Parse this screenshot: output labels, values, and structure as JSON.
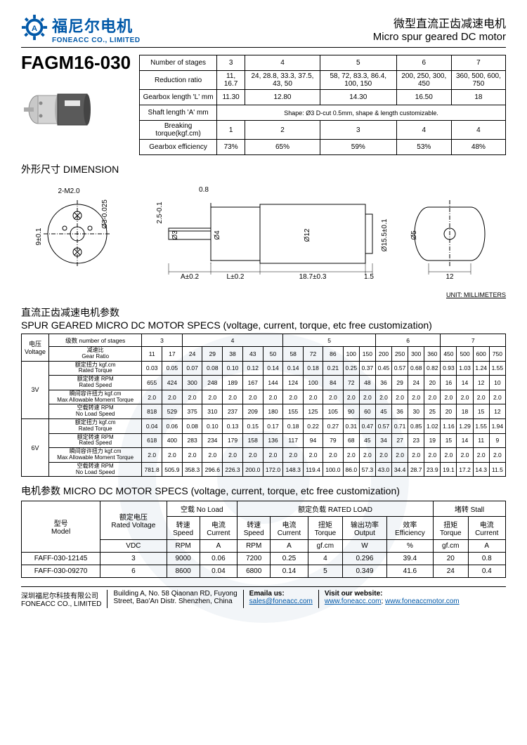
{
  "company": {
    "name_cn": "福尼尔电机",
    "name_en": "FONEACC CO., LIMITED",
    "logo_color": "#0058a8"
  },
  "header": {
    "title_cn": "微型直流正齿减速电机",
    "title_en": "Micro spur geared DC motor"
  },
  "model": "FAGM16-030",
  "stages_table": {
    "rows": [
      {
        "label": "Number of stages",
        "cells": [
          "3",
          "4",
          "5",
          "6",
          "7"
        ]
      },
      {
        "label": "Reduction ratio",
        "cells": [
          "11, 16.7",
          "24, 28.8, 33.3, 37.5, 43, 50",
          "58, 72, 83.3, 86.4, 100, 150",
          "200, 250, 300, 450",
          "360, 500, 600, 750"
        ]
      },
      {
        "label": "Gearbox length 'L' mm",
        "cells": [
          "11.30",
          "12.80",
          "14.30",
          "16.50",
          "18"
        ]
      },
      {
        "label": "Shaft length 'A' mm",
        "shaft_note": "Shape: Ø3 D-cut 0.5mm, shape & length customizable."
      },
      {
        "label": "Breaking torque(kgf.cm)",
        "cells": [
          "1",
          "2",
          "3",
          "4",
          "4"
        ]
      },
      {
        "label": "Gearbox efficiency",
        "cells": [
          "73%",
          "65%",
          "59%",
          "53%",
          "48%"
        ]
      }
    ]
  },
  "dimension": {
    "title_cn": "外形尺寸",
    "title_en": "DIMENSION",
    "unit_note": "UNIT: MILLIMETERS",
    "labels": {
      "holes": "2-M2.0",
      "h9": "9±0.1",
      "d3": "Ø3-0.025",
      "t08": "0.8",
      "t25": "2.5-0.1",
      "d4": "Ø4",
      "d3s": "Ø3",
      "d12": "Ø12",
      "d155": "Ø15.5±0.1",
      "a02": "A±0.2",
      "l02": "L±0.2",
      "b187": "18.7±0.3",
      "t15": "1.5",
      "w12": "12",
      "d5": "Ø5"
    }
  },
  "geared_specs": {
    "title_cn": "直流正齿减速电机参数",
    "title_en": "SPUR GEARED MICRO DC MOTOR SPECS (voltage, current, torque, etc free customization)",
    "col_voltage_cn": "电压",
    "col_voltage_en": "Voltage",
    "col_stages_cn": "级数",
    "col_stages_en": "number of stages",
    "col_ratio_cn": "减速比",
    "col_ratio_en": "Gear Ratio",
    "stage_groups": [
      "3",
      "4",
      "5",
      "6",
      "7"
    ],
    "stage_spans": [
      2,
      5,
      5,
      4,
      4
    ],
    "ratios": [
      "11",
      "17",
      "24",
      "29",
      "38",
      "43",
      "50",
      "58",
      "72",
      "86",
      "100",
      "150",
      "200",
      "250",
      "300",
      "360",
      "450",
      "500",
      "600",
      "750"
    ],
    "row_labels": [
      {
        "cn": "额定扭力 kgf.cm",
        "en": "Rated Torque"
      },
      {
        "cn": "额定转速 RPM",
        "en": "Rated Speed"
      },
      {
        "cn": "瞬间容许扭力 kgf.cm",
        "en": "Max Allowable Moment Torque"
      },
      {
        "cn": "空载转速 RPM",
        "en": "No Load Speed"
      }
    ],
    "voltages": [
      {
        "v": "3V",
        "data": [
          [
            "0.03",
            "0.05",
            "0.07",
            "0.08",
            "0.10",
            "0.12",
            "0.14",
            "0.14",
            "0.18",
            "0.21",
            "0.25",
            "0.37",
            "0.45",
            "0.57",
            "0.68",
            "0.82",
            "0.93",
            "1.03",
            "1.24",
            "1.55"
          ],
          [
            "655",
            "424",
            "300",
            "248",
            "189",
            "167",
            "144",
            "124",
            "100",
            "84",
            "72",
            "48",
            "36",
            "29",
            "24",
            "20",
            "16",
            "14",
            "12",
            "10"
          ],
          [
            "2.0",
            "2.0",
            "2.0",
            "2.0",
            "2.0",
            "2.0",
            "2.0",
            "2.0",
            "2.0",
            "2.0",
            "2.0",
            "2.0",
            "2.0",
            "2.0",
            "2.0",
            "2.0",
            "2.0",
            "2.0",
            "2.0",
            "2.0"
          ],
          [
            "818",
            "529",
            "375",
            "310",
            "237",
            "209",
            "180",
            "155",
            "125",
            "105",
            "90",
            "60",
            "45",
            "36",
            "30",
            "25",
            "20",
            "18",
            "15",
            "12"
          ]
        ]
      },
      {
        "v": "6V",
        "data": [
          [
            "0.04",
            "0.06",
            "0.08",
            "0.10",
            "0.13",
            "0.15",
            "0.17",
            "0.18",
            "0.22",
            "0.27",
            "0.31",
            "0.47",
            "0.57",
            "0.71",
            "0.85",
            "1.02",
            "1.16",
            "1.29",
            "1.55",
            "1.94"
          ],
          [
            "618",
            "400",
            "283",
            "234",
            "179",
            "158",
            "136",
            "117",
            "94",
            "79",
            "68",
            "45",
            "34",
            "27",
            "23",
            "19",
            "15",
            "14",
            "11",
            "9"
          ],
          [
            "2.0",
            "2.0",
            "2.0",
            "2.0",
            "2.0",
            "2.0",
            "2.0",
            "2.0",
            "2.0",
            "2.0",
            "2.0",
            "2.0",
            "2.0",
            "2.0",
            "2.0",
            "2.0",
            "2.0",
            "2.0",
            "2.0",
            "2.0"
          ],
          [
            "781.8",
            "505.9",
            "358.3",
            "296.6",
            "226.3",
            "200.0",
            "172.0",
            "148.3",
            "119.4",
            "100.0",
            "86.0",
            "57.3",
            "43.0",
            "34.4",
            "28.7",
            "23.9",
            "19.1",
            "17.2",
            "14.3",
            "11.5"
          ]
        ]
      }
    ]
  },
  "motor_specs": {
    "title_cn": "电机参数",
    "title_en": "MICRO DC MOTOR SPECS (voltage, current, torque, etc free customization)",
    "headers": {
      "model_cn": "型号",
      "model_en": "Model",
      "voltage_cn": "额定电压",
      "voltage_en": "Rated Voltage",
      "voltage_unit": "VDC",
      "noload_cn": "空载",
      "noload_en": "No Load",
      "rated_cn": "额定负载",
      "rated_en": "RATED LOAD",
      "stall_cn": "堵转",
      "stall_en": "Stall",
      "speed_cn": "转速",
      "speed_en": "Speed",
      "speed_unit": "RPM",
      "current_cn": "电流",
      "current_en": "Current",
      "current_unit": "A",
      "torque_cn": "扭矩",
      "torque_en": "Torque",
      "torque_unit": "gf.cm",
      "output_cn": "输出功率",
      "output_en": "Output",
      "output_unit": "W",
      "eff_cn": "效率",
      "eff_en": "Efficiency",
      "eff_unit": "%"
    },
    "rows": [
      {
        "model": "FAFF-030-12145",
        "vdc": "3",
        "nl_rpm": "9000",
        "nl_a": "0.06",
        "r_rpm": "7200",
        "r_a": "0.25",
        "r_t": "4",
        "r_w": "0.296",
        "r_eff": "39.4",
        "s_t": "20",
        "s_a": "0.8"
      },
      {
        "model": "FAFF-030-09270",
        "vdc": "6",
        "nl_rpm": "8600",
        "nl_a": "0.04",
        "r_rpm": "6800",
        "r_a": "0.14",
        "r_t": "5",
        "r_w": "0.349",
        "r_eff": "41.6",
        "s_t": "24",
        "s_a": "0.4"
      }
    ]
  },
  "footer": {
    "company_cn": "深圳福尼尔科技有限公司",
    "company_en": "FONEACC CO., LIMITED",
    "address1": "Building A, No. 58 Qiaonan RD, Fuyong",
    "address2": "Street, Bao'An Distr. Shenzhen, China",
    "email_label": "Emaila us:",
    "email": "sales@foneacc.com",
    "web_label": "Visit our website:",
    "web1": "www.foneacc.com",
    "web_sep": "; ",
    "web2": "www.foneaccmotor.com"
  }
}
